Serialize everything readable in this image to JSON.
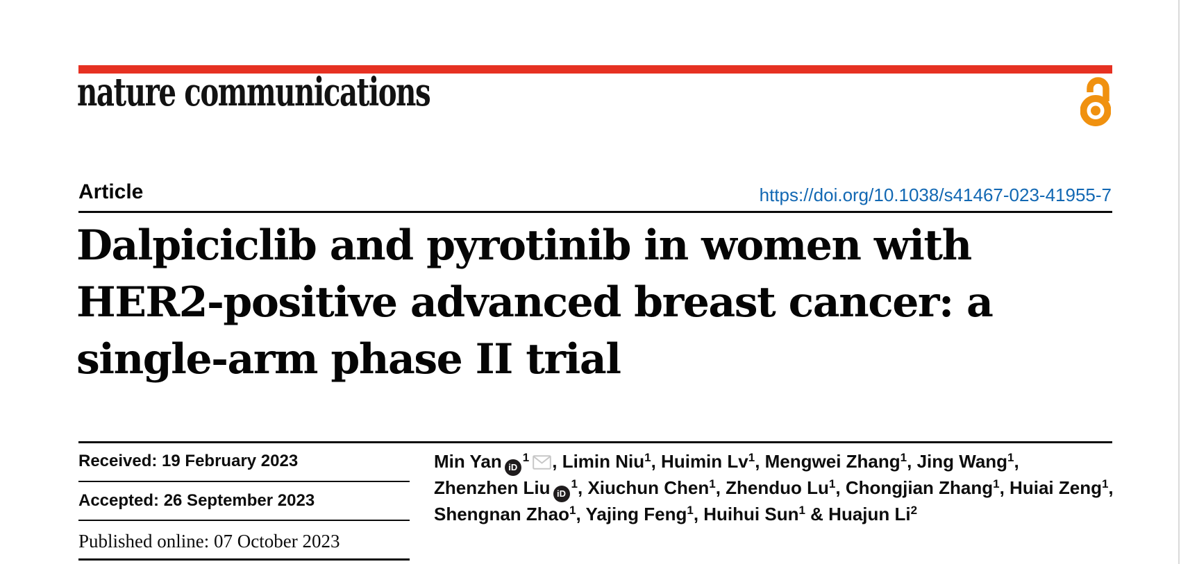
{
  "page": {
    "edge_line_color": "#d9d9d9",
    "background": "#ffffff"
  },
  "header": {
    "logo_text": "nature communications",
    "brand_bar_color": "#e63122",
    "open_access_icon": "open-access-padlock",
    "open_access_color": "#f0910f"
  },
  "article": {
    "label": "Article",
    "doi": "https://doi.org/10.1038/s41467-023-41955-7",
    "doi_color": "#1268b3",
    "title_line1": "Dalpiciclib and pyrotinib in women with",
    "title_line2": "HER2-positive advanced breast cancer: a",
    "title_line3": "single-arm phase II trial"
  },
  "dates": {
    "received": "Received: 19 February 2023",
    "accepted": "Accepted: 26 September 2023",
    "published": "Published online: 07 October 2023"
  },
  "authors": {
    "orcid_glyph": "iD",
    "email_icon_color": "#c7c7c7",
    "lines": [
      [
        {
          "text": "Min Yan"
        },
        {
          "icon": "orcid"
        },
        {
          "sup": "1"
        },
        {
          "icon": "email"
        },
        {
          "text": ", Limin Niu"
        },
        {
          "sup": "1"
        },
        {
          "text": ", Huimin Lv"
        },
        {
          "sup": "1"
        },
        {
          "text": ", Mengwei Zhang"
        },
        {
          "sup": "1"
        },
        {
          "text": ", Jing Wang"
        },
        {
          "sup": "1"
        },
        {
          "text": ","
        }
      ],
      [
        {
          "text": "Zhenzhen Liu"
        },
        {
          "icon": "orcid"
        },
        {
          "sup": "1"
        },
        {
          "text": ", Xiuchun Chen"
        },
        {
          "sup": "1"
        },
        {
          "text": ", Zhenduo Lu"
        },
        {
          "sup": "1"
        },
        {
          "text": ", Chongjian Zhang"
        },
        {
          "sup": "1"
        },
        {
          "text": ", Huiai Zeng"
        },
        {
          "sup": "1"
        },
        {
          "text": ","
        }
      ],
      [
        {
          "text": "Shengnan Zhao"
        },
        {
          "sup": "1"
        },
        {
          "text": ", Yajing Feng"
        },
        {
          "sup": "1"
        },
        {
          "text": ", Huihui Sun"
        },
        {
          "sup": "1"
        },
        {
          "text": " & Huajun Li"
        },
        {
          "sup": "2"
        }
      ]
    ]
  }
}
